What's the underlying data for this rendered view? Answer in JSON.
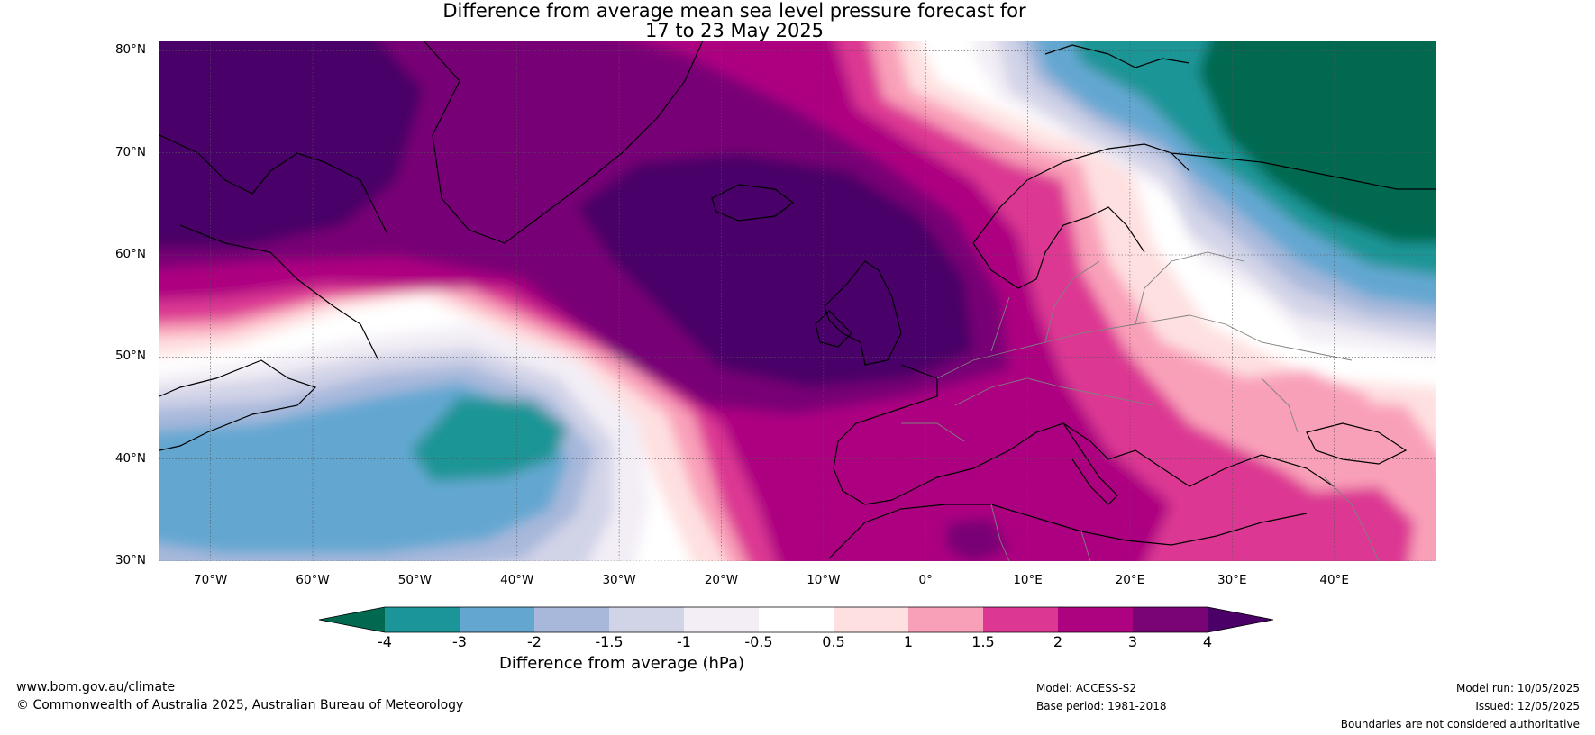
{
  "title_line1": "Difference from average mean sea level pressure forecast for",
  "title_line2": "17 to 23 May 2025",
  "map": {
    "lon_range": [
      -75,
      50
    ],
    "lat_range": [
      30,
      81
    ],
    "lat_labels": [
      "80°N",
      "70°N",
      "60°N",
      "50°N",
      "40°N",
      "30°N"
    ],
    "lat_values": [
      80,
      70,
      60,
      50,
      40,
      30
    ],
    "lon_labels": [
      "70°W",
      "60°W",
      "50°W",
      "40°W",
      "30°W",
      "20°W",
      "10°W",
      "0°",
      "10°E",
      "20°E",
      "30°E",
      "40°E"
    ],
    "lon_values": [
      -70,
      -60,
      -50,
      -40,
      -30,
      -20,
      -10,
      0,
      10,
      20,
      30,
      40
    ],
    "coast_color": "#000000",
    "border_color": "#808080"
  },
  "colorbar": {
    "title": "Difference from average (hPa)",
    "ticks": [
      "-4",
      "-3",
      "-2",
      "-1.5",
      "-1",
      "-0.5",
      "0.5",
      "1",
      "1.5",
      "2",
      "3",
      "4"
    ],
    "colors": [
      "#00694f",
      "#1b9597",
      "#63a7d1",
      "#a7b8db",
      "#d1d3e7",
      "#f3eef6",
      "#ffffff",
      "#fee0e0",
      "#f9a0b9",
      "#dc3793",
      "#ad0381",
      "#780476",
      "#4a0067"
    ]
  },
  "footer": {
    "site": "www.bom.gov.au/climate",
    "copyright": "© Commonwealth of Australia 2025, Australian Bureau of Meteorology",
    "model": "Model: ACCESS-S2",
    "base_period": "Base period: 1981-2018",
    "model_run": "Model run: 10/05/2025",
    "issued": "Issued: 12/05/2025",
    "disclaimer": "Boundaries are not considered authoritative"
  }
}
